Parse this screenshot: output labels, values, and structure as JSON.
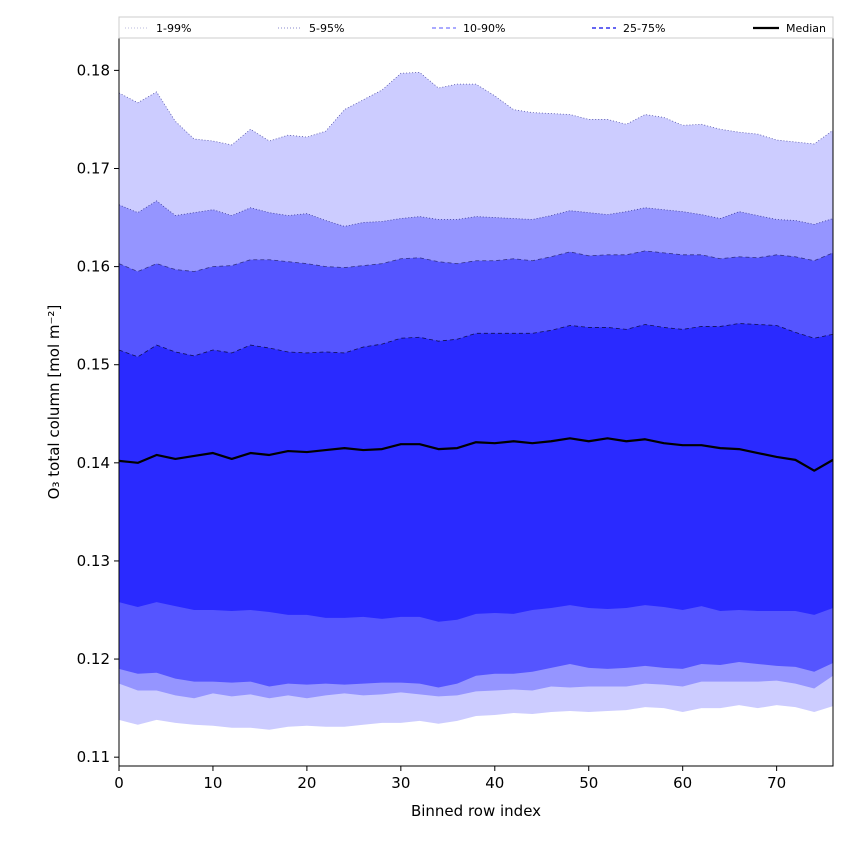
{
  "chart_data": {
    "type": "area",
    "xlabel": "Binned row index",
    "ylabel": "O₃ total column [mol m⁻²]",
    "xlim": [
      0,
      76
    ],
    "ylim": [
      0.1091,
      0.1833
    ],
    "x_ticks": [
      0,
      10,
      20,
      30,
      40,
      50,
      60,
      70
    ],
    "y_ticks": [
      0.11,
      0.12,
      0.13,
      0.14,
      0.15,
      0.16,
      0.17,
      0.18
    ],
    "x_tick_labels": [
      "0",
      "10",
      "20",
      "30",
      "40",
      "50",
      "60",
      "70"
    ],
    "y_tick_labels": [
      "0.11",
      "0.12",
      "0.13",
      "0.14",
      "0.15",
      "0.16",
      "0.17",
      "0.18"
    ],
    "legend_position": "top",
    "legend": [
      {
        "label": "1-99%",
        "style": "dotted",
        "color": "#ccccff"
      },
      {
        "label": "5-95%",
        "style": "dotted",
        "color": "#9999ff"
      },
      {
        "label": "10-90%",
        "style": "dashed",
        "color": "#7777ff"
      },
      {
        "label": "25-75%",
        "style": "dashed",
        "color": "#3333ee"
      },
      {
        "label": "Median",
        "style": "solid",
        "color": "#000000"
      }
    ],
    "colors": {
      "band_1_99": "#ccccff",
      "band_5_95": "#9595ff",
      "band_10_90": "#5555ff",
      "band_25_75": "#2a2aff",
      "median": "#000000"
    },
    "x": [
      0,
      2,
      4,
      6,
      8,
      10,
      12,
      14,
      16,
      18,
      20,
      22,
      24,
      26,
      28,
      30,
      32,
      34,
      36,
      38,
      40,
      42,
      44,
      46,
      48,
      50,
      52,
      54,
      56,
      58,
      60,
      62,
      64,
      66,
      68,
      70,
      72,
      74,
      76
    ],
    "bands": [
      {
        "name": "1-99%",
        "lower": [
          0.1138,
          0.1133,
          0.1138,
          0.1135,
          0.1133,
          0.1132,
          0.113,
          0.113,
          0.1128,
          0.1131,
          0.1132,
          0.1131,
          0.1131,
          0.1133,
          0.1135,
          0.1135,
          0.1137,
          0.1134,
          0.1137,
          0.1142,
          0.1143,
          0.1145,
          0.1144,
          0.1146,
          0.1147,
          0.1146,
          0.1147,
          0.1148,
          0.1151,
          0.115,
          0.1146,
          0.115,
          0.115,
          0.1153,
          0.115,
          0.1153,
          0.1151,
          0.1146,
          0.1152
        ],
        "upper": [
          0.1777,
          0.1767,
          0.1778,
          0.1748,
          0.173,
          0.1728,
          0.1724,
          0.174,
          0.1728,
          0.1734,
          0.1732,
          0.1738,
          0.176,
          0.177,
          0.178,
          0.1797,
          0.1798,
          0.1782,
          0.1786,
          0.1786,
          0.1774,
          0.176,
          0.1757,
          0.1756,
          0.1755,
          0.175,
          0.175,
          0.1745,
          0.1755,
          0.1752,
          0.1744,
          0.1745,
          0.174,
          0.1737,
          0.1735,
          0.1729,
          0.1727,
          0.1725,
          0.1739
        ]
      },
      {
        "name": "5-95%",
        "lower": [
          0.1175,
          0.1168,
          0.1168,
          0.1163,
          0.116,
          0.1165,
          0.1162,
          0.1164,
          0.116,
          0.1163,
          0.116,
          0.1163,
          0.1165,
          0.1163,
          0.1164,
          0.1166,
          0.1164,
          0.1162,
          0.1163,
          0.1167,
          0.1168,
          0.1169,
          0.1168,
          0.1172,
          0.1171,
          0.1172,
          0.1172,
          0.1172,
          0.1175,
          0.1174,
          0.1172,
          0.1177,
          0.1177,
          0.1177,
          0.1177,
          0.1178,
          0.1175,
          0.117,
          0.1183
        ],
        "upper": [
          0.1663,
          0.1655,
          0.1667,
          0.1652,
          0.1655,
          0.1658,
          0.1652,
          0.166,
          0.1655,
          0.1652,
          0.1654,
          0.1647,
          0.1641,
          0.1645,
          0.1646,
          0.1649,
          0.1651,
          0.1648,
          0.1648,
          0.1651,
          0.165,
          0.1649,
          0.1648,
          0.1652,
          0.1657,
          0.1655,
          0.1653,
          0.1656,
          0.166,
          0.1658,
          0.1656,
          0.1653,
          0.1649,
          0.1656,
          0.1652,
          0.1648,
          0.1647,
          0.1643,
          0.1649
        ]
      },
      {
        "name": "10-90%",
        "lower": [
          0.119,
          0.1185,
          0.1186,
          0.118,
          0.1177,
          0.1177,
          0.1176,
          0.1177,
          0.1172,
          0.1175,
          0.1174,
          0.1175,
          0.1174,
          0.1175,
          0.1176,
          0.1176,
          0.1175,
          0.1171,
          0.1175,
          0.1183,
          0.1185,
          0.1185,
          0.1187,
          0.1191,
          0.1195,
          0.1191,
          0.119,
          0.1191,
          0.1193,
          0.1191,
          0.119,
          0.1195,
          0.1194,
          0.1197,
          0.1195,
          0.1193,
          0.1192,
          0.1187,
          0.1196
        ],
        "upper": [
          0.1603,
          0.1595,
          0.1603,
          0.1597,
          0.1595,
          0.16,
          0.1601,
          0.1607,
          0.1607,
          0.1605,
          0.1603,
          0.16,
          0.1599,
          0.1601,
          0.1603,
          0.1608,
          0.1609,
          0.1605,
          0.1603,
          0.1606,
          0.1606,
          0.1608,
          0.1606,
          0.161,
          0.1615,
          0.1611,
          0.1612,
          0.1612,
          0.1616,
          0.1614,
          0.1612,
          0.1612,
          0.1608,
          0.161,
          0.1609,
          0.1612,
          0.161,
          0.1606,
          0.1614
        ]
      },
      {
        "name": "25-75%",
        "lower": [
          0.1258,
          0.1253,
          0.1258,
          0.1254,
          0.125,
          0.125,
          0.1249,
          0.125,
          0.1248,
          0.1245,
          0.1245,
          0.1242,
          0.1242,
          0.1243,
          0.1241,
          0.1243,
          0.1243,
          0.1238,
          0.124,
          0.1246,
          0.1247,
          0.1246,
          0.125,
          0.1252,
          0.1255,
          0.1252,
          0.1251,
          0.1252,
          0.1255,
          0.1253,
          0.125,
          0.1254,
          0.1249,
          0.125,
          0.1249,
          0.1249,
          0.1249,
          0.1245,
          0.1252
        ],
        "upper": [
          0.1515,
          0.1508,
          0.152,
          0.1513,
          0.1509,
          0.1515,
          0.1512,
          0.152,
          0.1517,
          0.1513,
          0.1512,
          0.1513,
          0.1512,
          0.1518,
          0.1521,
          0.1527,
          0.1528,
          0.1524,
          0.1526,
          0.1532,
          0.1532,
          0.1532,
          0.1532,
          0.1535,
          0.154,
          0.1538,
          0.1538,
          0.1536,
          0.1541,
          0.1538,
          0.1536,
          0.1539,
          0.1539,
          0.1542,
          0.1541,
          0.154,
          0.1533,
          0.1527,
          0.1531
        ]
      }
    ],
    "median": [
      0.1402,
      0.14,
      0.1408,
      0.1404,
      0.1407,
      0.141,
      0.1404,
      0.141,
      0.1408,
      0.1412,
      0.1411,
      0.1413,
      0.1415,
      0.1413,
      0.1414,
      0.1419,
      0.1419,
      0.1414,
      0.1415,
      0.1421,
      0.142,
      0.1422,
      0.142,
      0.1422,
      0.1425,
      0.1422,
      0.1425,
      0.1422,
      0.1424,
      0.142,
      0.1418,
      0.1418,
      0.1415,
      0.1414,
      0.141,
      0.1406,
      0.1403,
      0.1392,
      0.1403
    ]
  }
}
